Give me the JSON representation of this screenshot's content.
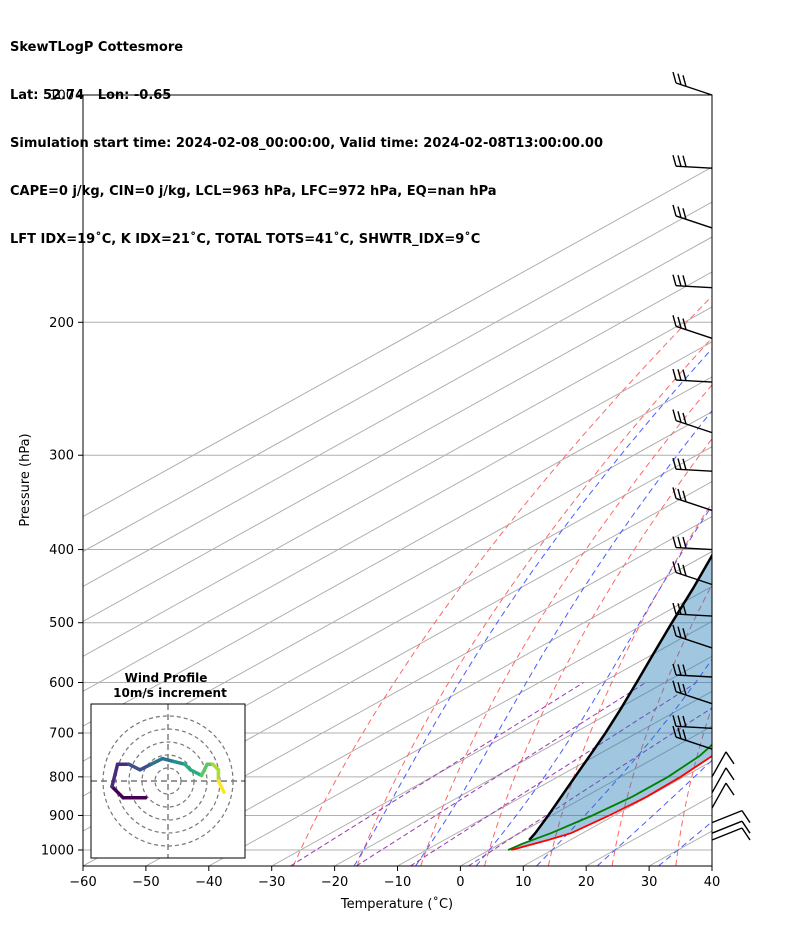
{
  "header": {
    "lines": [
      "SkewTLogP Cottesmore",
      "Lat: 52.74   Lon: -0.65",
      "Simulation start time: 2024-02-08_00:00:00, Valid time: 2024-02-08T13:00:00.00",
      "CAPE=0 j/kg, CIN=0 j/kg, LCL=963 hPa, LFC=972 hPa, EQ=nan hPa",
      "LFT IDX=19˚C, K IDX=21˚C, TOTAL TOTS=41˚C, SHWTR_IDX=9˚C"
    ]
  },
  "chart_data": {
    "type": "line",
    "subtype": "skew-t log-p",
    "xlabel": "Temperature (˚C)",
    "ylabel": "Pressure (hPa)",
    "xlim": [
      -60,
      40
    ],
    "ylim": [
      1050,
      100
    ],
    "yscale": "log",
    "x_ticks": [
      -60,
      -50,
      -40,
      -30,
      -20,
      -10,
      0,
      10,
      20,
      30,
      40
    ],
    "x_tick_labels": [
      "−60",
      "−50",
      "−40",
      "−30",
      "−20",
      "−10",
      "0",
      "10",
      "20",
      "30",
      "40"
    ],
    "y_ticks": [
      1000,
      900,
      800,
      700,
      600,
      500,
      400,
      300,
      200,
      100
    ],
    "grid": true,
    "series": [
      {
        "role": "temperature",
        "color": "#ff0000",
        "points": [
          [
            1000,
            3.5
          ],
          [
            970,
            6.5
          ],
          [
            950,
            8.2
          ],
          [
            900,
            9.2
          ],
          [
            850,
            9.8
          ],
          [
            800,
            9.5
          ],
          [
            750,
            8.5
          ],
          [
            700,
            6.5
          ],
          [
            650,
            4.5
          ],
          [
            600,
            3.0
          ],
          [
            550,
            1.0
          ],
          [
            500,
            -1.5
          ],
          [
            450,
            -4.5
          ],
          [
            400,
            -7.5
          ],
          [
            350,
            -10.5
          ],
          [
            320,
            -13.0
          ],
          [
            300,
            -15.0
          ],
          [
            270,
            -18.0
          ],
          [
            250,
            -20.5
          ],
          [
            230,
            -22.5
          ],
          [
            215,
            -23.5
          ],
          [
            205,
            -23.0
          ],
          [
            190,
            -21.5
          ],
          [
            170,
            -19.5
          ],
          [
            160,
            -18.5
          ],
          [
            150,
            -17.0
          ],
          [
            140,
            -14.0
          ],
          [
            120,
            -8.0
          ],
          [
            100,
            -2.5
          ]
        ]
      },
      {
        "role": "dewpoint",
        "color": "#008000",
        "points": [
          [
            1000,
            3.0
          ],
          [
            980,
            3.5
          ],
          [
            950,
            5.0
          ],
          [
            900,
            6.5
          ],
          [
            850,
            7.5
          ],
          [
            800,
            7.5
          ],
          [
            750,
            6.5
          ],
          [
            700,
            4.0
          ],
          [
            650,
            1.0
          ],
          [
            600,
            -3.0
          ],
          [
            550,
            -8.5
          ],
          [
            500,
            -15.0
          ],
          [
            470,
            -18.0
          ],
          [
            450,
            -18.5
          ],
          [
            400,
            -20.0
          ],
          [
            380,
            -21.0
          ],
          [
            360,
            -22.5
          ],
          [
            330,
            -21.5
          ],
          [
            300,
            -24.0
          ],
          [
            250,
            -29.0
          ],
          [
            220,
            -32.5
          ],
          [
            200,
            -33.5
          ],
          [
            185,
            -31.0
          ],
          [
            170,
            -34.0
          ],
          [
            160,
            -35.0
          ],
          [
            140,
            -36.0
          ],
          [
            130,
            -36.0
          ],
          [
            100,
            -27.0
          ]
        ]
      },
      {
        "role": "parcel",
        "color": "#000000",
        "points": [
          [
            970,
            3.5
          ],
          [
            950,
            2.5
          ],
          [
            900,
            -0.5
          ],
          [
            850,
            -3.8
          ],
          [
            800,
            -7.3
          ],
          [
            750,
            -11.0
          ],
          [
            700,
            -15.0
          ],
          [
            650,
            -19.5
          ],
          [
            600,
            -24.5
          ],
          [
            550,
            -30.0
          ],
          [
            500,
            -36.0
          ],
          [
            450,
            -42.5
          ],
          [
            400,
            -50.0
          ],
          [
            350,
            -58.5
          ],
          [
            300,
            -68.0
          ],
          [
            250,
            -79.0
          ],
          [
            200,
            -92.0
          ],
          [
            150,
            -108.0
          ],
          [
            100,
            -128.0
          ]
        ]
      }
    ],
    "wind_barbs_pressure": [
      970,
      950,
      920,
      880,
      840,
      800,
      735,
      690,
      640,
      590,
      540,
      490,
      445,
      400,
      355,
      315,
      280,
      240,
      210,
      180,
      150,
      125,
      100
    ],
    "inset": {
      "title": "Wind Profile",
      "subtitle": "10m/s increment",
      "colormap": "viridis",
      "hodograph": [
        [
          -4,
          -3
        ],
        [
          -8,
          -3
        ],
        [
          -10,
          -1
        ],
        [
          -9,
          3
        ],
        [
          -7,
          3
        ],
        [
          -5,
          2
        ],
        [
          -3,
          3
        ],
        [
          -1,
          4
        ],
        [
          1,
          3.5
        ],
        [
          3,
          3
        ],
        [
          4,
          2
        ],
        [
          6,
          1
        ],
        [
          7,
          3
        ],
        [
          8,
          3
        ],
        [
          9,
          2
        ],
        [
          9,
          0
        ],
        [
          10,
          -2
        ]
      ]
    }
  }
}
